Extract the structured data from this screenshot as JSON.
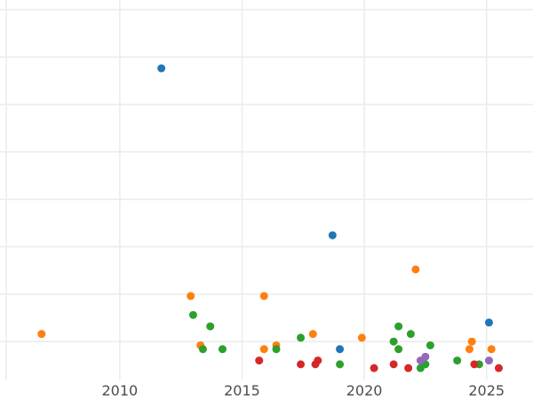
{
  "chart_data": {
    "type": "scatter",
    "title": "",
    "xlabel": "",
    "ylabel": "",
    "xlim": [
      2005.1,
      2026.9
    ],
    "ylim": [
      0,
      1.0
    ],
    "x_ticks": [
      2010,
      2015,
      2020,
      2025
    ],
    "x_tick_labels": [
      "2010",
      "2015",
      "2020",
      "2025"
    ],
    "y_gridlines": [
      0.1,
      0.225,
      0.35,
      0.475,
      0.6,
      0.725,
      0.85,
      0.975
    ],
    "grid": true,
    "legend": "none",
    "series": [
      {
        "color": "#1f77b4",
        "points": [
          {
            "x": 2011.7,
            "y": 0.82
          },
          {
            "x": 2018.7,
            "y": 0.38
          },
          {
            "x": 2019.0,
            "y": 0.08
          },
          {
            "x": 2025.1,
            "y": 0.15
          }
        ]
      },
      {
        "color": "#ff7f0e",
        "points": [
          {
            "x": 2006.8,
            "y": 0.12
          },
          {
            "x": 2012.9,
            "y": 0.22
          },
          {
            "x": 2013.3,
            "y": 0.09
          },
          {
            "x": 2015.9,
            "y": 0.22
          },
          {
            "x": 2015.9,
            "y": 0.08
          },
          {
            "x": 2016.4,
            "y": 0.09
          },
          {
            "x": 2017.9,
            "y": 0.12
          },
          {
            "x": 2019.9,
            "y": 0.11
          },
          {
            "x": 2022.1,
            "y": 0.29
          },
          {
            "x": 2024.3,
            "y": 0.08
          },
          {
            "x": 2024.4,
            "y": 0.1
          },
          {
            "x": 2025.2,
            "y": 0.08
          }
        ]
      },
      {
        "color": "#2ca02c",
        "points": [
          {
            "x": 2013.0,
            "y": 0.17
          },
          {
            "x": 2013.4,
            "y": 0.08
          },
          {
            "x": 2013.7,
            "y": 0.14
          },
          {
            "x": 2014.2,
            "y": 0.08
          },
          {
            "x": 2016.4,
            "y": 0.08
          },
          {
            "x": 2017.4,
            "y": 0.11
          },
          {
            "x": 2019.0,
            "y": 0.04
          },
          {
            "x": 2021.2,
            "y": 0.1
          },
          {
            "x": 2021.4,
            "y": 0.14
          },
          {
            "x": 2021.4,
            "y": 0.08
          },
          {
            "x": 2021.9,
            "y": 0.12
          },
          {
            "x": 2022.3,
            "y": 0.03
          },
          {
            "x": 2022.5,
            "y": 0.04
          },
          {
            "x": 2022.7,
            "y": 0.09
          },
          {
            "x": 2023.8,
            "y": 0.05
          },
          {
            "x": 2024.7,
            "y": 0.04
          }
        ]
      },
      {
        "color": "#d62728",
        "points": [
          {
            "x": 2015.7,
            "y": 0.05
          },
          {
            "x": 2017.4,
            "y": 0.04
          },
          {
            "x": 2018.0,
            "y": 0.04
          },
          {
            "x": 2018.1,
            "y": 0.05
          },
          {
            "x": 2020.4,
            "y": 0.03
          },
          {
            "x": 2021.2,
            "y": 0.04
          },
          {
            "x": 2021.8,
            "y": 0.03
          },
          {
            "x": 2024.5,
            "y": 0.04
          },
          {
            "x": 2025.5,
            "y": 0.03
          }
        ]
      },
      {
        "color": "#9467bd",
        "points": [
          {
            "x": 2022.3,
            "y": 0.05
          },
          {
            "x": 2022.5,
            "y": 0.06
          },
          {
            "x": 2025.1,
            "y": 0.05
          }
        ]
      }
    ]
  }
}
